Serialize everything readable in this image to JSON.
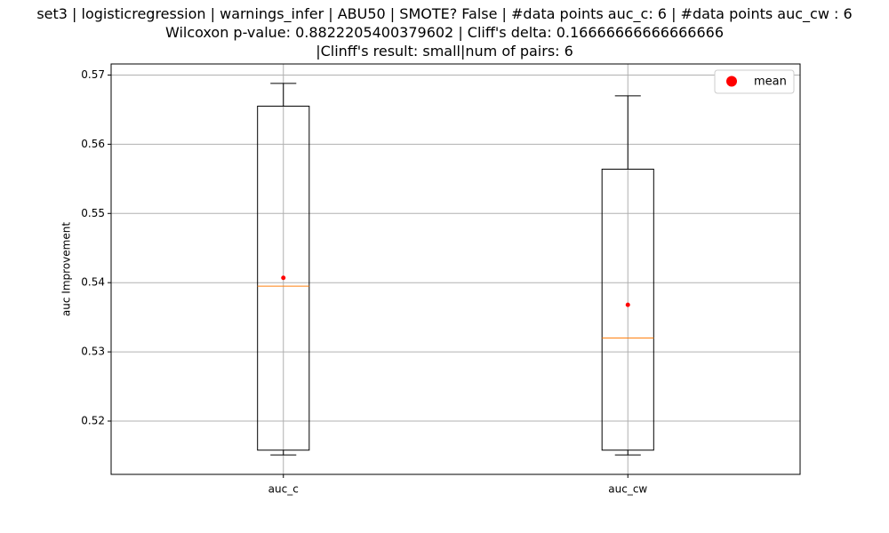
{
  "chart_data": {
    "type": "boxplot",
    "title_lines": [
      "set3 | logisticregression | warnings_infer | ABU50 | SMOTE? False | #data points auc_c: 6 | #data points auc_cw : 6",
      "Wilcoxon p-value: 0.8822205400379602 | Cliff's delta: 0.16666666666666666",
      "|Clinff's result: small|num of pairs: 6"
    ],
    "xlabel": "",
    "ylabel": "auc Improvement",
    "ylim": [
      0.5123,
      0.5716
    ],
    "yticks": [
      0.52,
      0.53,
      0.54,
      0.55,
      0.56,
      0.57
    ],
    "ytick_labels": [
      "0.52",
      "0.53",
      "0.54",
      "0.55",
      "0.56",
      "0.57"
    ],
    "grid": true,
    "legend": {
      "placement": "top-right",
      "entries": [
        {
          "label": "mean",
          "color": "#ff0000"
        }
      ]
    },
    "categories": [
      "auc_c",
      "auc_cw"
    ],
    "boxes": [
      {
        "category": "auc_c",
        "whisker_low": 0.5151,
        "q1": 0.5158,
        "median": 0.5395,
        "q3": 0.5655,
        "whisker_high": 0.5688,
        "mean": 0.5407
      },
      {
        "category": "auc_cw",
        "whisker_low": 0.5151,
        "q1": 0.5158,
        "median": 0.532,
        "q3": 0.5564,
        "whisker_high": 0.567,
        "mean": 0.5368
      }
    ],
    "colors": {
      "box": "#000000",
      "median": "#ff7f0e",
      "mean": "#ff0000",
      "grid": "#b0b0b0"
    }
  }
}
